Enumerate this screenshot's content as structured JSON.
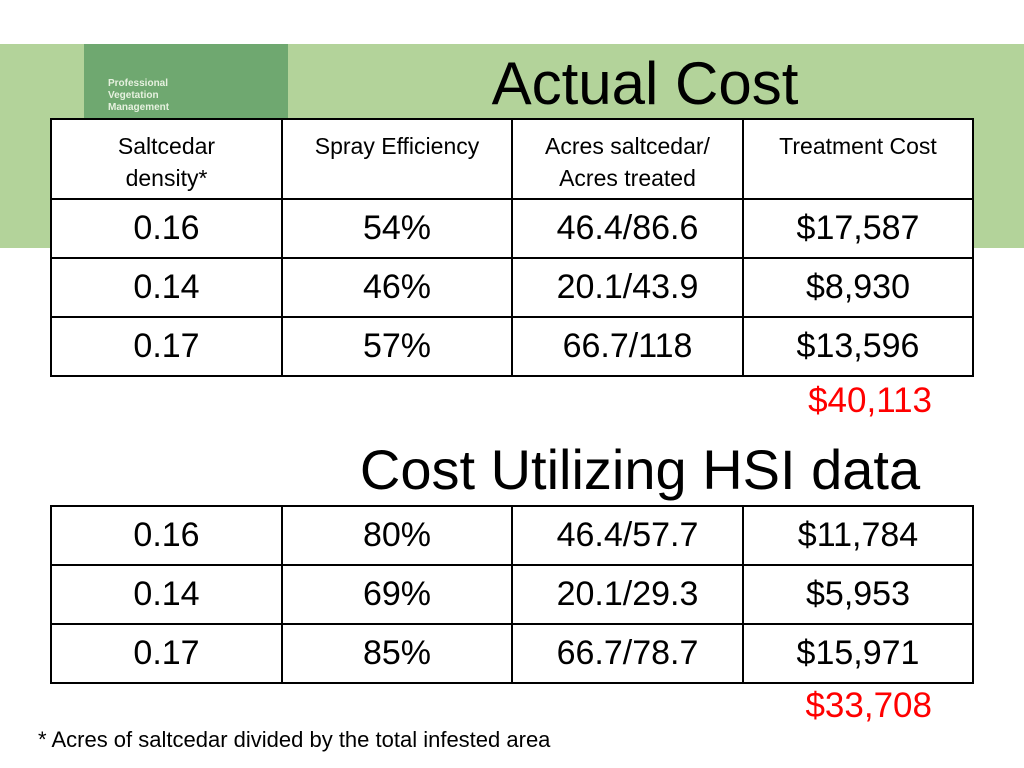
{
  "brand": {
    "lines": [
      "Professional",
      "Vegetation",
      "Management"
    ]
  },
  "colors": {
    "band": "#b3d39a",
    "logo": "#6fa870",
    "total": "#ff0000"
  },
  "actual": {
    "title": "Actual Cost",
    "headers": [
      [
        "Saltcedar",
        "density*"
      ],
      [
        "Spray Efficiency"
      ],
      [
        "Acres saltcedar/",
        "Acres treated"
      ],
      [
        "Treatment Cost"
      ]
    ],
    "rows": [
      [
        "0.16",
        "54%",
        "46.4/86.6",
        "$17,587"
      ],
      [
        "0.14",
        "46%",
        "20.1/43.9",
        "$8,930"
      ],
      [
        "0.17",
        "57%",
        "66.7/118",
        "$13,596"
      ]
    ],
    "total": "$40,113"
  },
  "hsi": {
    "title": "Cost Utilizing HSI data",
    "rows": [
      [
        "0.16",
        "80%",
        "46.4/57.7",
        "$11,784"
      ],
      [
        "0.14",
        "69%",
        "20.1/29.3",
        "$5,953"
      ],
      [
        "0.17",
        "85%",
        "66.7/78.7",
        "$15,971"
      ]
    ],
    "total": "$33,708"
  },
  "footnote": "* Acres of saltcedar divided by the total infested area"
}
